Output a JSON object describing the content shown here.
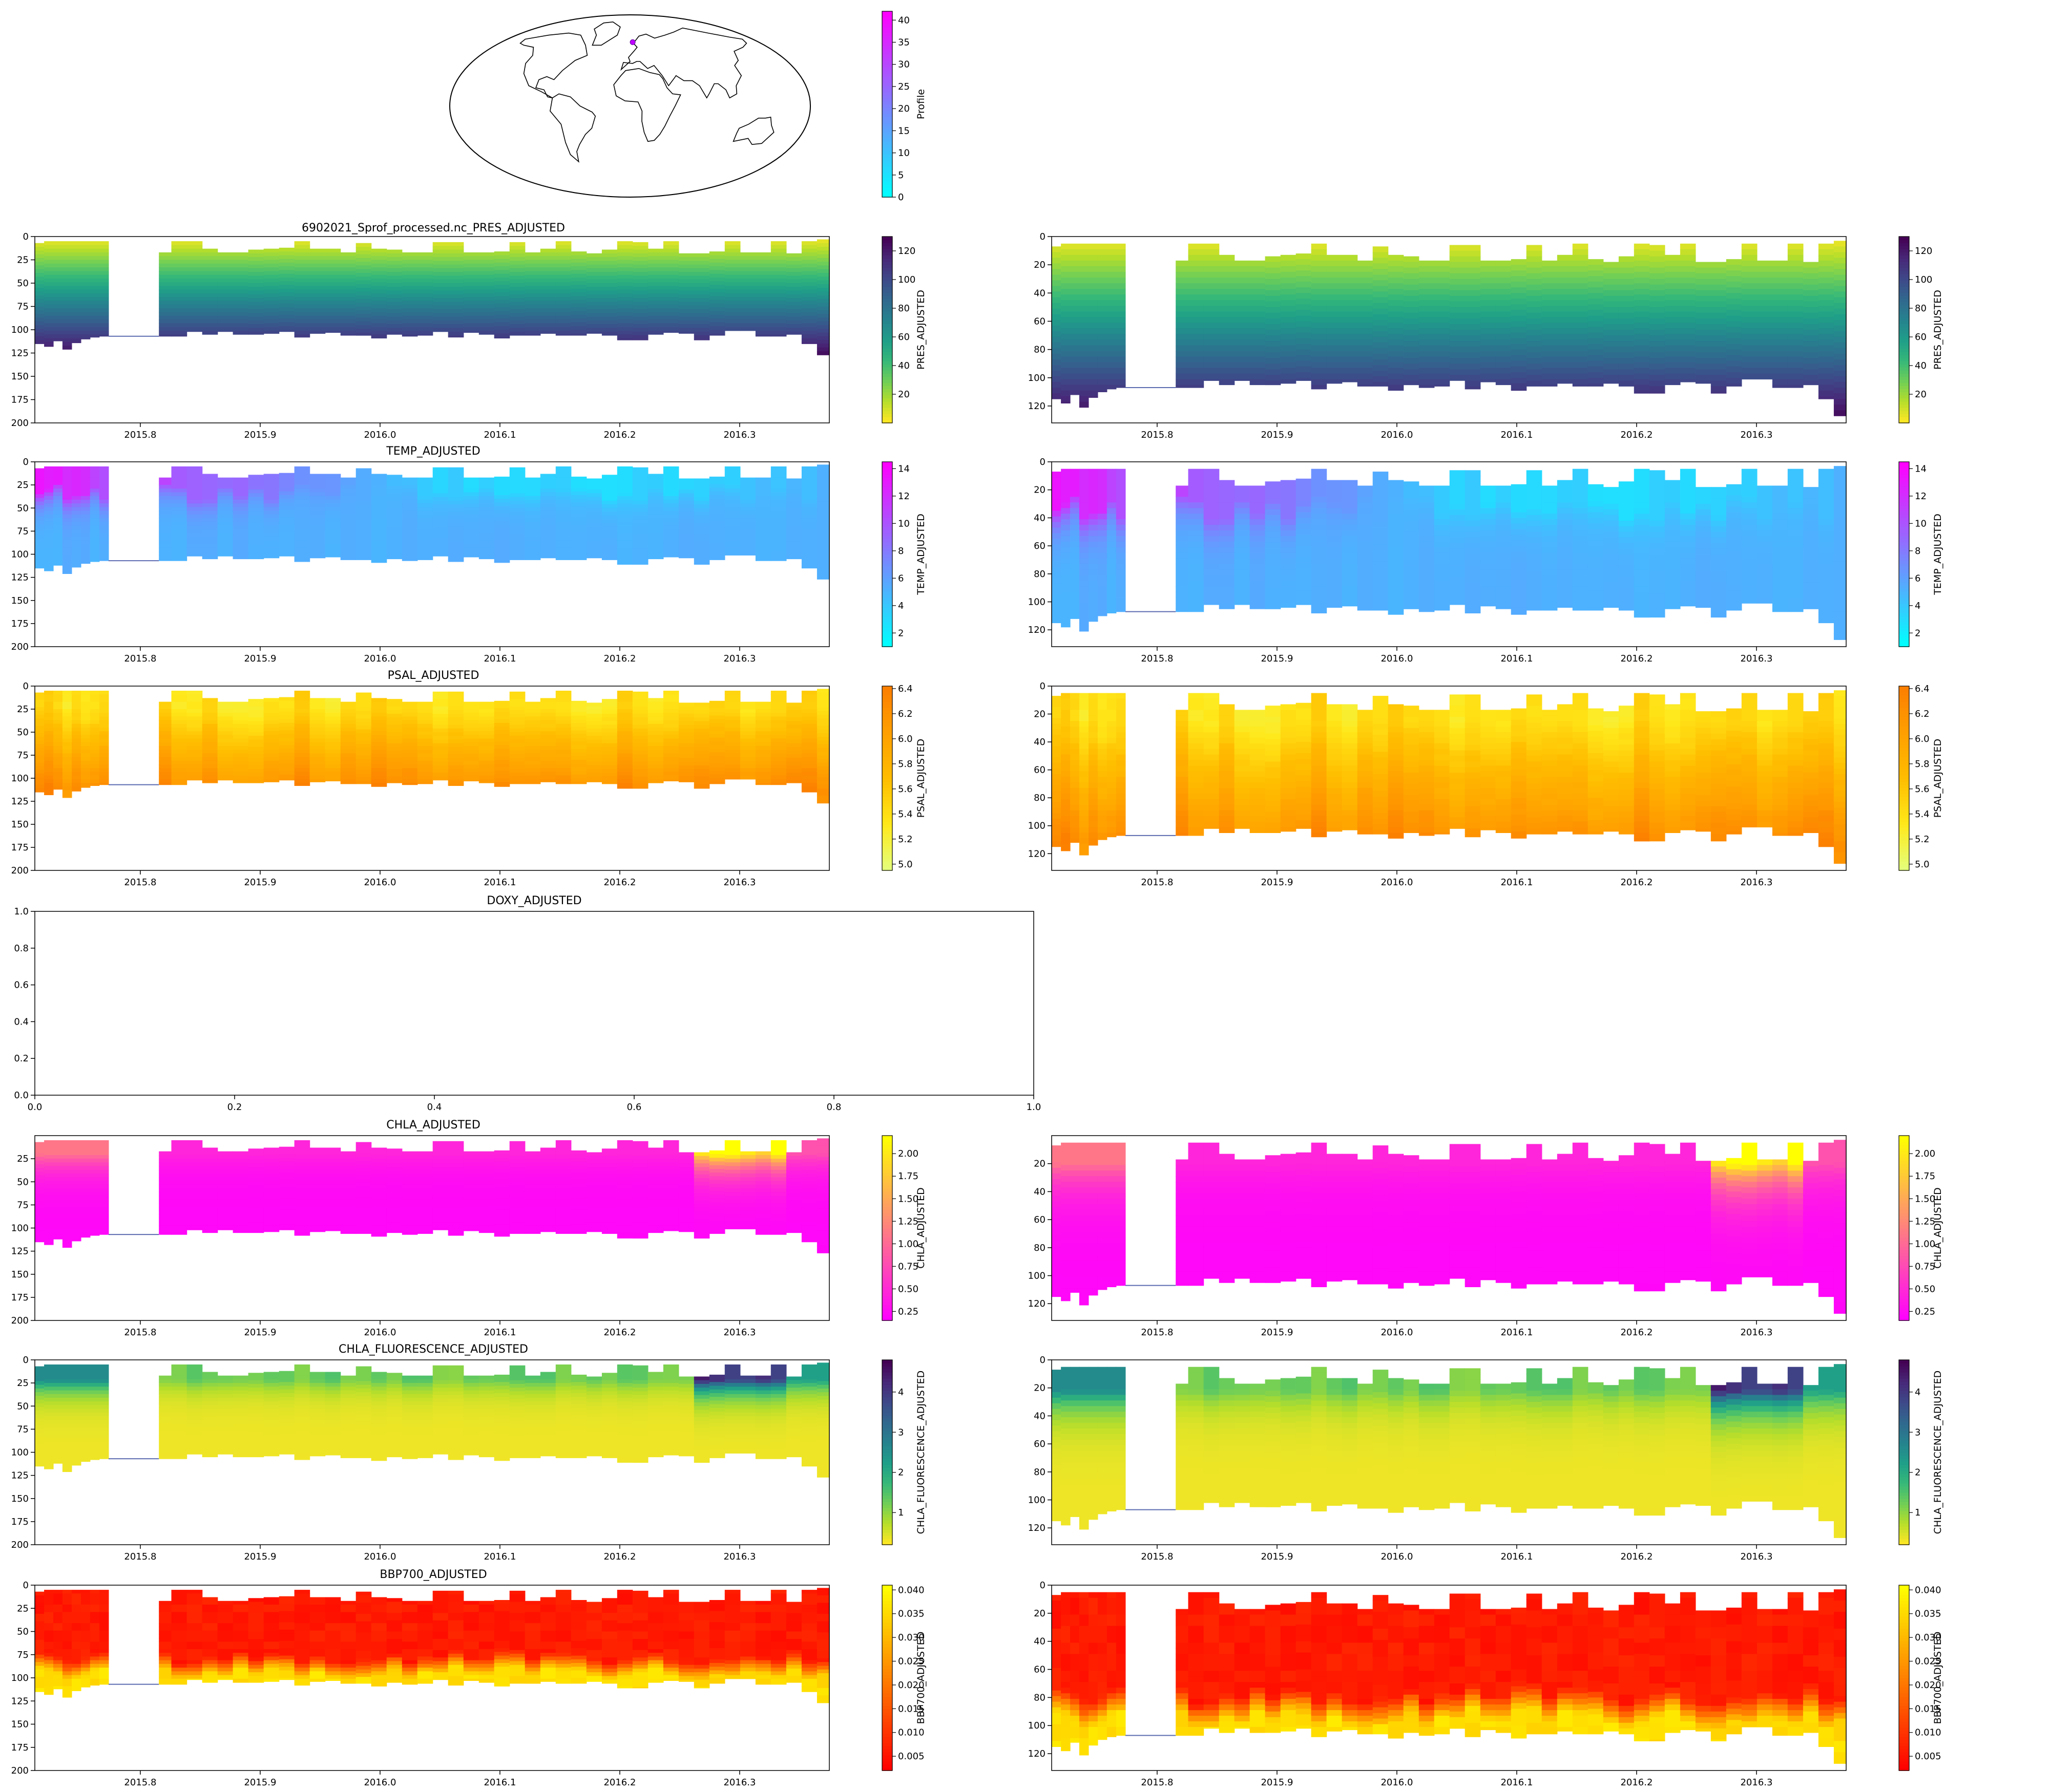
{
  "figure": {
    "title": "6902021_Sprof_processed.nc_PRES_ADJUSTED",
    "colors": {
      "viridis": [
        "#fde725",
        "#b5de2b",
        "#6ece58",
        "#35b779",
        "#1f9e89",
        "#26828e",
        "#31688e",
        "#3e4989",
        "#482878",
        "#440154"
      ],
      "cool": [
        "#00ffff",
        "#ff00ff"
      ],
      "wistia": [
        "#e4ff7a",
        "#ffe81a",
        "#ffbd00",
        "#ffa000",
        "#fc7f00"
      ],
      "spring": [
        "#ff00ff",
        "#ffff00"
      ],
      "viridis_r": [
        "#fde725",
        "#b5de2b",
        "#6ece58",
        "#35b779",
        "#1f9e89",
        "#26828e",
        "#31688e",
        "#3e4989",
        "#482878",
        "#440154"
      ],
      "autumn": [
        "#ff0000",
        "#ffff00"
      ],
      "missing_line": "#5b6bb0"
    }
  },
  "chart_data": [
    {
      "type": "map",
      "projection": "Robinson",
      "colorbar": {
        "label": "Profile",
        "ticks": [
          "0",
          "5",
          "10",
          "15",
          "20",
          "25",
          "30",
          "35",
          "40"
        ],
        "range": [
          0,
          42
        ],
        "cmap": "cool"
      },
      "marker": {
        "lon": 4,
        "lat": 63
      }
    },
    {
      "type": "heatmap",
      "variable": "PRES_ADJUSTED",
      "title": "6902021_Sprof_processed.nc_PRES_ADJUSTED",
      "cmap": "viridis",
      "vrange": [
        0,
        130
      ],
      "left": {
        "xticks": [
          "2015.8",
          "2015.9",
          "2016.0",
          "2016.1",
          "2016.2",
          "2016.3"
        ],
        "yticks": [
          "0",
          "25",
          "50",
          "75",
          "100",
          "125",
          "150",
          "175",
          "200"
        ],
        "ylim": [
          200,
          0
        ]
      },
      "right": {
        "xticks": [
          "2015.8",
          "2015.9",
          "2016.0",
          "2016.1",
          "2016.2",
          "2016.3"
        ],
        "yticks": [
          "0",
          "20",
          "40",
          "60",
          "80",
          "100",
          "120"
        ],
        "ylim": [
          132,
          0
        ]
      },
      "colorbar": {
        "label": "PRES_ADJUSTED",
        "ticks": [
          "20",
          "40",
          "60",
          "80",
          "100",
          "120"
        ]
      }
    },
    {
      "type": "heatmap",
      "variable": "TEMP_ADJUSTED",
      "title": "TEMP_ADJUSTED",
      "cmap": "cool",
      "vrange": [
        1,
        14.5
      ],
      "left": {
        "xticks": [
          "2015.8",
          "2015.9",
          "2016.0",
          "2016.1",
          "2016.2",
          "2016.3"
        ],
        "yticks": [
          "0",
          "25",
          "50",
          "75",
          "100",
          "125",
          "150",
          "175",
          "200"
        ],
        "ylim": [
          200,
          0
        ]
      },
      "right": {
        "xticks": [
          "2015.8",
          "2015.9",
          "2016.0",
          "2016.1",
          "2016.2",
          "2016.3"
        ],
        "yticks": [
          "0",
          "20",
          "40",
          "60",
          "80",
          "100",
          "120"
        ],
        "ylim": [
          132,
          0
        ]
      },
      "colorbar": {
        "label": "TEMP_ADJUSTED",
        "ticks": [
          "2",
          "4",
          "6",
          "8",
          "10",
          "12",
          "14"
        ]
      }
    },
    {
      "type": "heatmap",
      "variable": "PSAL_ADJUSTED",
      "title": "PSAL_ADJUSTED",
      "cmap": "wistia",
      "vrange": [
        4.95,
        6.42
      ],
      "left": {
        "xticks": [
          "2015.8",
          "2015.9",
          "2016.0",
          "2016.1",
          "2016.2",
          "2016.3"
        ],
        "yticks": [
          "0",
          "25",
          "50",
          "75",
          "100",
          "125",
          "150",
          "175",
          "200"
        ],
        "ylim": [
          200,
          0
        ]
      },
      "right": {
        "xticks": [
          "2015.8",
          "2015.9",
          "2016.0",
          "2016.1",
          "2016.2",
          "2016.3"
        ],
        "yticks": [
          "0",
          "20",
          "40",
          "60",
          "80",
          "100",
          "120"
        ],
        "ylim": [
          132,
          0
        ]
      },
      "colorbar": {
        "label": "PSAL_ADJUSTED",
        "ticks": [
          "5.0",
          "5.2",
          "5.4",
          "5.6",
          "5.8",
          "6.0",
          "6.2",
          "6.4"
        ]
      }
    },
    {
      "type": "empty",
      "variable": "DOXY_ADJUSTED",
      "title": "DOXY_ADJUSTED",
      "xticks": [
        "0.0",
        "0.2",
        "0.4",
        "0.6",
        "0.8",
        "1.0"
      ],
      "yticks": [
        "0.0",
        "0.2",
        "0.4",
        "0.6",
        "0.8",
        "1.0"
      ],
      "xlim": [
        0,
        1
      ],
      "ylim": [
        0,
        1
      ]
    },
    {
      "type": "heatmap",
      "variable": "CHLA_ADJUSTED",
      "title": "CHLA_ADJUSTED",
      "cmap": "spring",
      "vrange": [
        0.15,
        2.2
      ],
      "left": {
        "xticks": [
          "2015.8",
          "2015.9",
          "2016.0",
          "2016.1",
          "2016.2",
          "2016.3"
        ],
        "yticks": [
          "25",
          "50",
          "75",
          "100",
          "125",
          "150",
          "175",
          "200"
        ],
        "ylim": [
          200,
          0
        ]
      },
      "right": {
        "xticks": [
          "2015.8",
          "2015.9",
          "2016.0",
          "2016.1",
          "2016.2",
          "2016.3"
        ],
        "yticks": [
          "20",
          "40",
          "60",
          "80",
          "100",
          "120"
        ],
        "ylim": [
          132,
          0
        ]
      },
      "colorbar": {
        "label": "CHLA_ADJUSTED",
        "ticks": [
          "0.25",
          "0.50",
          "0.75",
          "1.00",
          "1.25",
          "1.50",
          "1.75",
          "2.00"
        ]
      }
    },
    {
      "type": "heatmap",
      "variable": "CHLA_FLUORESCENCE_ADJUSTED",
      "title": "CHLA_FLUORESCENCE_ADJUSTED",
      "cmap": "viridis_r",
      "vrange": [
        0.2,
        4.8
      ],
      "left": {
        "xticks": [
          "2015.8",
          "2015.9",
          "2016.0",
          "2016.1",
          "2016.2",
          "2016.3"
        ],
        "yticks": [
          "0",
          "25",
          "50",
          "75",
          "100",
          "125",
          "150",
          "175",
          "200"
        ],
        "ylim": [
          200,
          0
        ]
      },
      "right": {
        "xticks": [
          "2015.8",
          "2015.9",
          "2016.0",
          "2016.1",
          "2016.2",
          "2016.3"
        ],
        "yticks": [
          "0",
          "20",
          "40",
          "60",
          "80",
          "100",
          "120"
        ],
        "ylim": [
          132,
          0
        ]
      },
      "colorbar": {
        "label": "CHLA_FLUORESCENCE_ADJUSTED",
        "ticks": [
          "1",
          "2",
          "3",
          "4"
        ]
      }
    },
    {
      "type": "heatmap",
      "variable": "BBP700_ADJUSTED",
      "title": "BBP700_ADJUSTED",
      "cmap": "autumn",
      "vrange": [
        0.002,
        0.041
      ],
      "left": {
        "xticks": [
          "2015.8",
          "2015.9",
          "2016.0",
          "2016.1",
          "2016.2",
          "2016.3"
        ],
        "yticks": [
          "0",
          "25",
          "50",
          "75",
          "100",
          "125",
          "150",
          "175",
          "200"
        ],
        "ylim": [
          200,
          0
        ]
      },
      "right": {
        "xticks": [
          "2015.8",
          "2015.9",
          "2016.0",
          "2016.1",
          "2016.2",
          "2016.3"
        ],
        "yticks": [
          "0",
          "20",
          "40",
          "60",
          "80",
          "100",
          "120"
        ],
        "ylim": [
          132,
          0
        ]
      },
      "colorbar": {
        "label": "BBP700_ADJUSTED",
        "ticks": [
          "0.005",
          "0.010",
          "0.015",
          "0.020",
          "0.025",
          "0.030",
          "0.035",
          "0.040"
        ]
      }
    }
  ],
  "profiles": {
    "x": [
      2015.7159,
      2015.7236,
      2015.7312,
      2015.7389,
      2015.7466,
      2015.7542,
      2015.7619,
      2015.7696,
      2015.8195,
      2015.8323,
      2015.8452,
      2015.858,
      2015.8708,
      2015.8836,
      2015.8965,
      2015.9093,
      2015.9221,
      2015.9349,
      2015.9477,
      2015.9606,
      2015.9734,
      2015.9862,
      2015.999,
      2016.0119,
      2016.0247,
      2016.0375,
      2016.0503,
      2016.0632,
      2016.076,
      2016.0888,
      2016.1016,
      2016.1144,
      2016.1273,
      2016.1401,
      2016.1529,
      2016.1657,
      2016.1786,
      2016.1914,
      2016.2042,
      2016.217,
      2016.2299,
      2016.2427,
      2016.2555,
      2016.2683,
      2016.2811,
      2016.294,
      2016.3068,
      2016.3196,
      2016.3324,
      2016.3453,
      2016.3581,
      2016.3709
    ],
    "xlim": [
      2015.712,
      2016.3748
    ],
    "gap": [
      2015.7735,
      2015.8155
    ],
    "top": [
      7,
      5,
      5,
      5,
      5,
      5,
      5,
      5,
      17,
      5,
      5,
      13,
      17,
      17,
      14,
      13,
      12,
      5,
      13,
      13,
      17,
      7,
      13,
      14,
      17,
      17,
      6,
      6,
      17,
      17,
      16,
      6,
      17,
      13,
      5,
      16,
      18,
      14,
      5,
      6,
      13,
      5,
      18,
      18,
      16,
      5,
      17,
      17,
      5,
      18,
      5,
      3
    ],
    "bottom": [
      115,
      118,
      112,
      121,
      114,
      110,
      108,
      107,
      107,
      107,
      102,
      105,
      102,
      105,
      105,
      104,
      102,
      108,
      104,
      103,
      106,
      106,
      109,
      105,
      107,
      106,
      102,
      108,
      103,
      105,
      109,
      106,
      106,
      104,
      106,
      106,
      104,
      106,
      111,
      111,
      105,
      103,
      104,
      111,
      106,
      101,
      101,
      107,
      107,
      105,
      115,
      127
    ]
  }
}
